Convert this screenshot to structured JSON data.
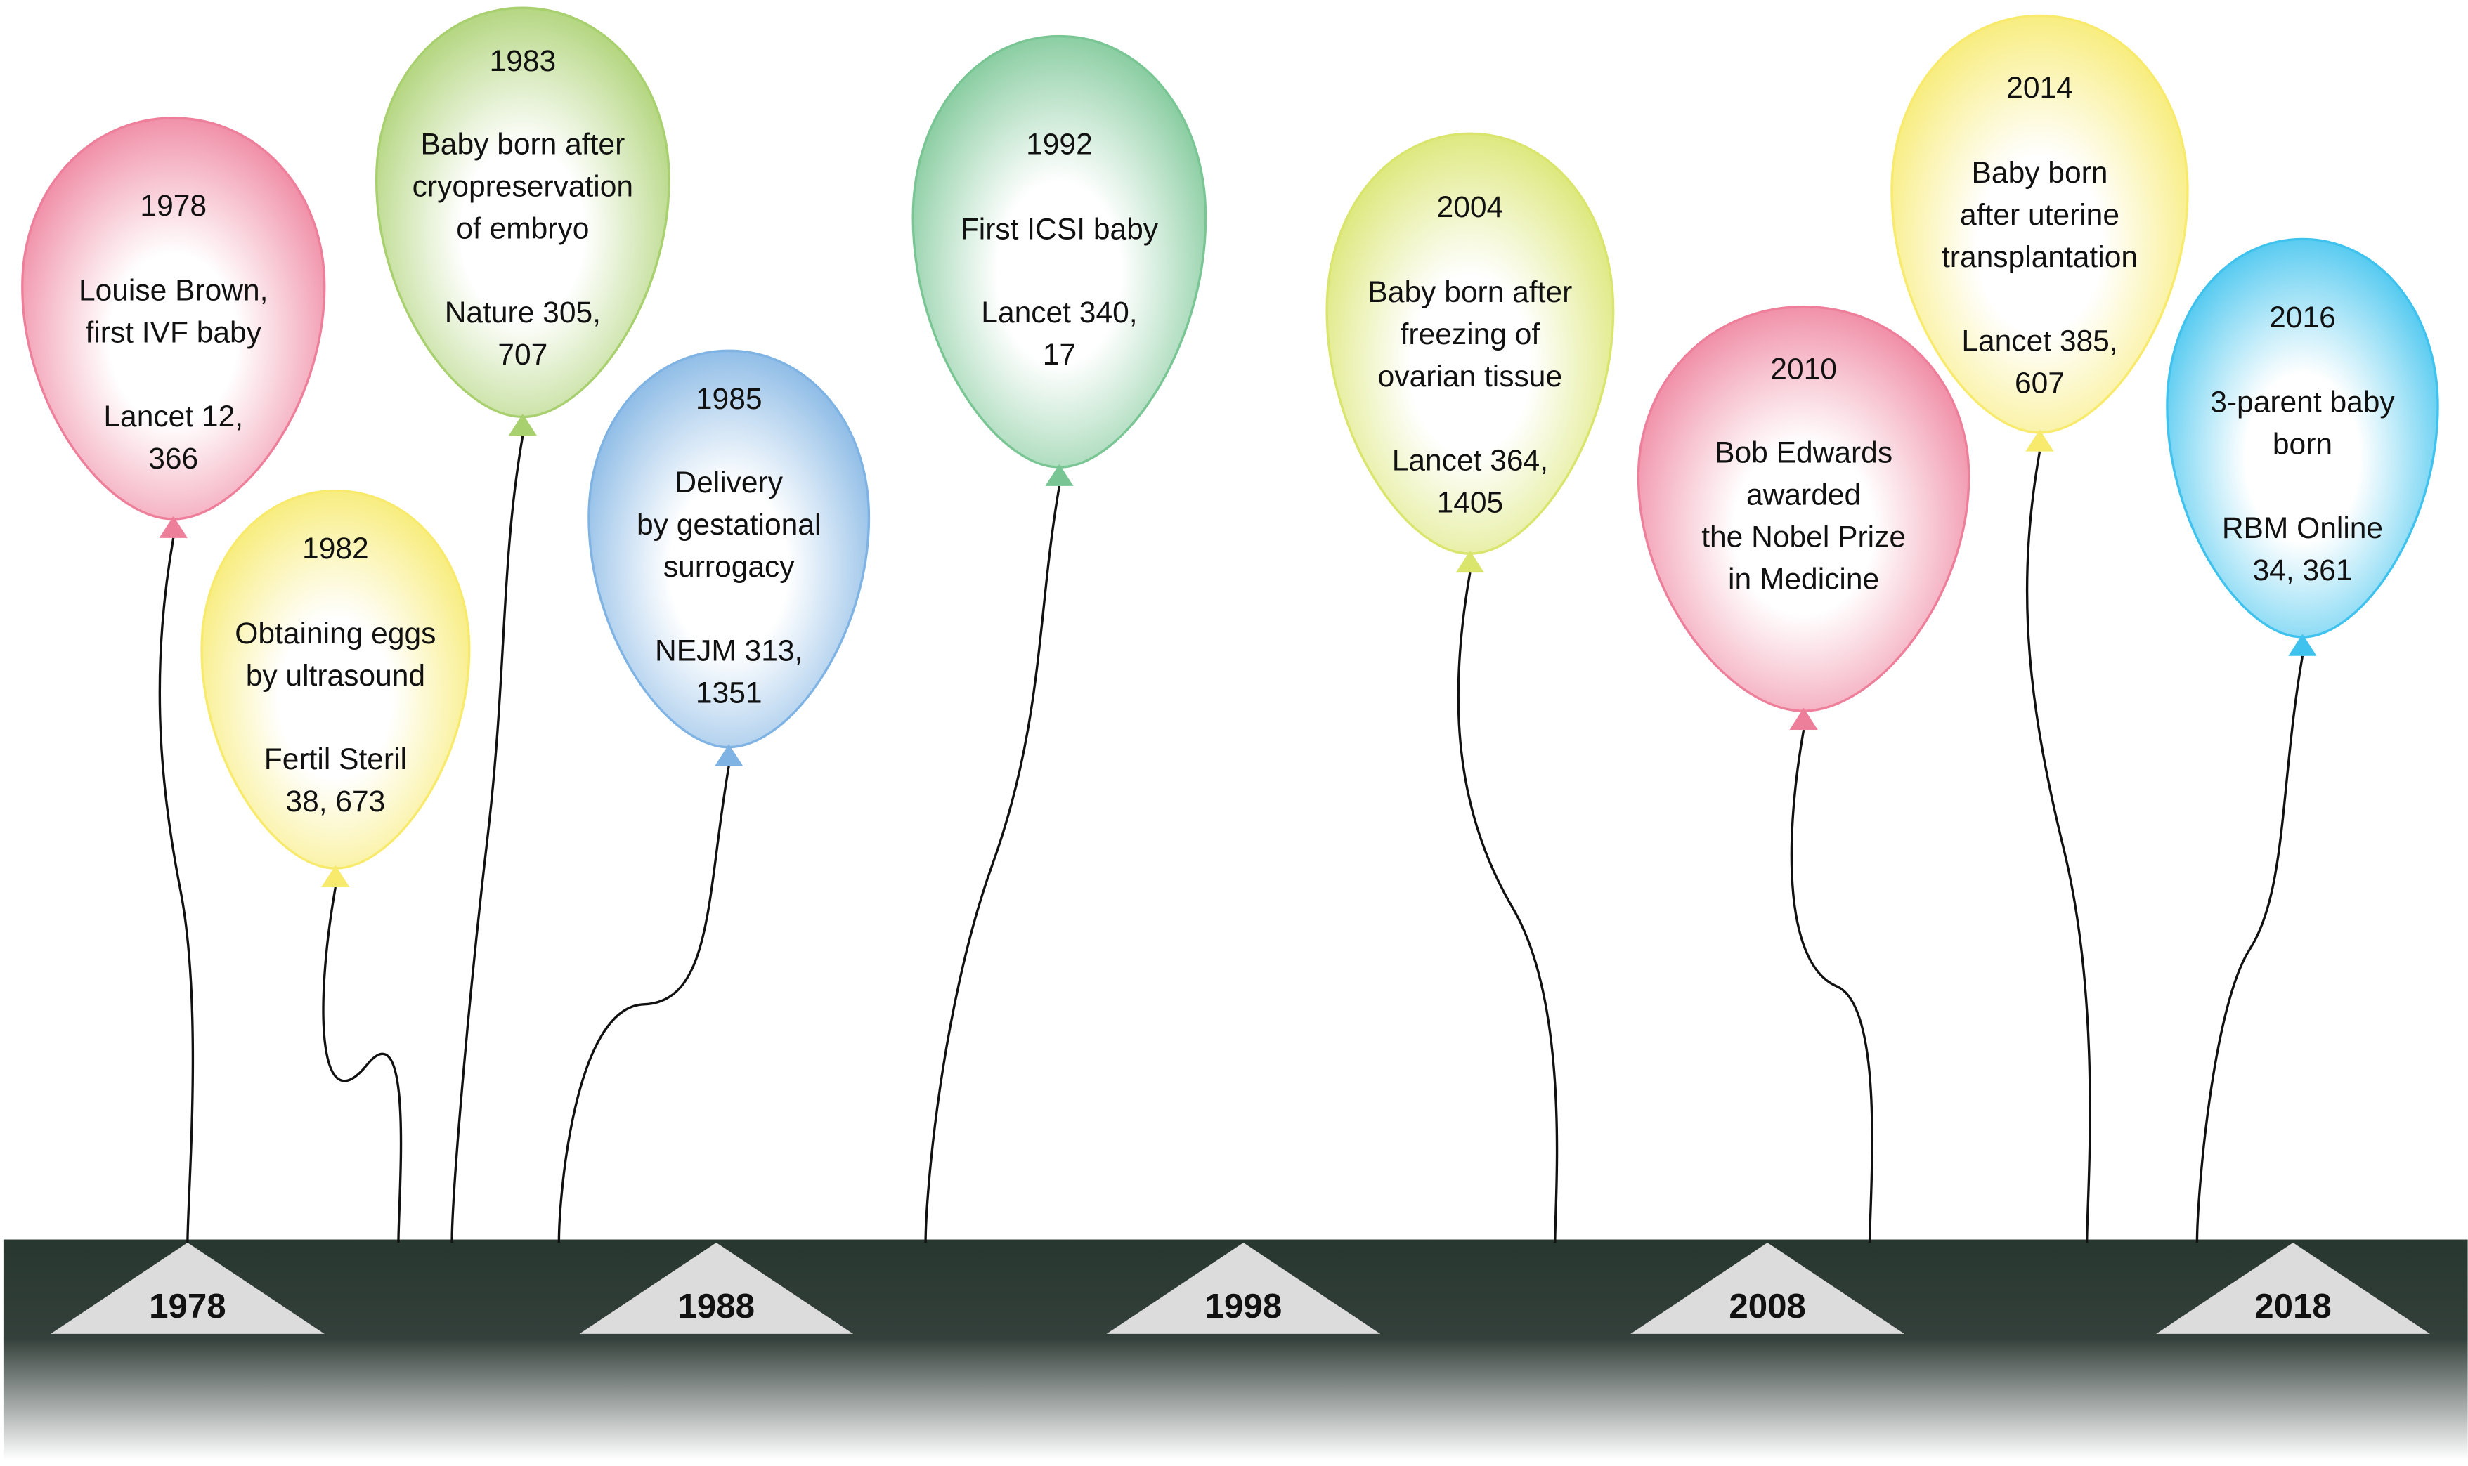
{
  "balloons": [
    {
      "year": "1978",
      "text": [
        "Louise Brown,",
        "first IVF baby"
      ],
      "citation": [
        "Lancet 12,",
        "366"
      ],
      "color": "#ee7f9b"
    },
    {
      "year": "1982",
      "text": [
        "Obtaining eggs",
        "by ultrasound"
      ],
      "citation": [
        "Fertil Steril",
        "38, 673"
      ],
      "color": "#f7ea6c"
    },
    {
      "year": "1983",
      "text": [
        "Baby born after",
        "cryopreservation",
        "of embryo"
      ],
      "citation": [
        "Nature 305,",
        "707"
      ],
      "color": "#a9d06e"
    },
    {
      "year": "1985",
      "text": [
        "Delivery",
        "by gestational",
        "surrogacy"
      ],
      "citation": [
        "NEJM 313,",
        "1351"
      ],
      "color": "#7fb3e3"
    },
    {
      "year": "1992",
      "text": [
        "First ICSI baby"
      ],
      "citation": [
        "Lancet 340,",
        "17"
      ],
      "color": "#79c694"
    },
    {
      "year": "2004",
      "text": [
        "Baby born after",
        "freezing of",
        "ovarian tissue"
      ],
      "citation": [
        "Lancet 364,",
        "1405"
      ],
      "color": "#d9e56c"
    },
    {
      "year": "2010",
      "text": [
        "Bob Edwards",
        "awarded",
        "the Nobel Prize",
        "in Medicine"
      ],
      "citation": [],
      "color": "#ee7f9b"
    },
    {
      "year": "2014",
      "text": [
        "Baby born",
        "after uterine",
        "transplantation"
      ],
      "citation": [
        "Lancet 385,",
        "607"
      ],
      "color": "#f7ea6c"
    },
    {
      "year": "2016",
      "text": [
        "3-parent baby",
        "born"
      ],
      "citation": [
        "RBM Online",
        "34, 361"
      ],
      "color": "#3fc3ee"
    }
  ],
  "axis": [
    "1978",
    "1988",
    "1998",
    "2008",
    "2018"
  ]
}
